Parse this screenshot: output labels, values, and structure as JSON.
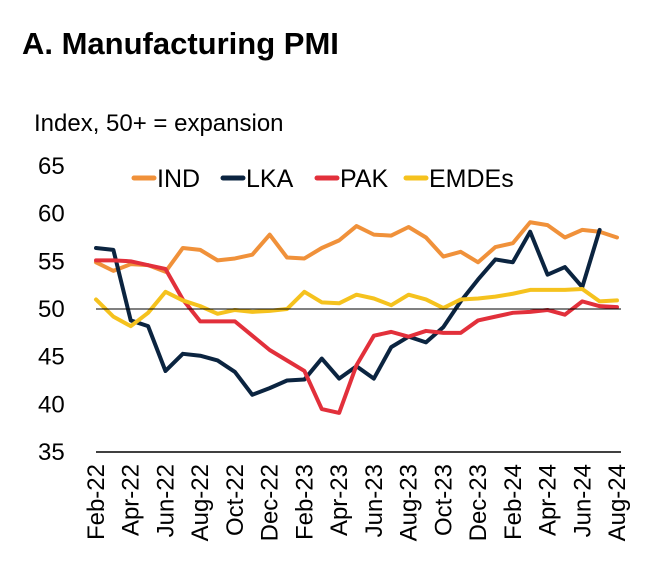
{
  "chart_data": {
    "type": "line",
    "title": "A. Manufacturing PMI",
    "ylabel": "Index, 50+ = expansion",
    "xlabel": "",
    "ylim": [
      35,
      65
    ],
    "yticks": [
      35,
      40,
      45,
      50,
      55,
      60,
      65
    ],
    "reference_line": 50,
    "grid": false,
    "legend_position": "top",
    "x": [
      "Feb-22",
      "Mar-22",
      "Apr-22",
      "May-22",
      "Jun-22",
      "Jul-22",
      "Aug-22",
      "Sep-22",
      "Oct-22",
      "Nov-22",
      "Dec-22",
      "Jan-23",
      "Feb-23",
      "Mar-23",
      "Apr-23",
      "May-23",
      "Jun-23",
      "Jul-23",
      "Aug-23",
      "Sep-23",
      "Oct-23",
      "Nov-23",
      "Dec-23",
      "Jan-24",
      "Feb-24",
      "Mar-24",
      "Apr-24",
      "May-24",
      "Jun-24",
      "Jul-24",
      "Aug-24"
    ],
    "xtick_labels": [
      "Feb-22",
      "Apr-22",
      "Jun-22",
      "Aug-22",
      "Oct-22",
      "Dec-22",
      "Feb-23",
      "Apr-23",
      "Jun-23",
      "Aug-23",
      "Oct-23",
      "Dec-23",
      "Feb-24",
      "Apr-24",
      "Jun-24",
      "Aug-24"
    ],
    "series": [
      {
        "name": "IND",
        "color": "#F0913A",
        "values": [
          54.9,
          54.0,
          54.7,
          54.6,
          53.9,
          56.4,
          56.2,
          55.1,
          55.3,
          55.7,
          57.8,
          55.4,
          55.3,
          56.4,
          57.2,
          58.7,
          57.8,
          57.7,
          58.6,
          57.5,
          55.5,
          56.0,
          54.9,
          56.5,
          56.9,
          59.1,
          58.8,
          57.5,
          58.3,
          58.1,
          57.5
        ]
      },
      {
        "name": "LKA",
        "color": "#0B2440",
        "values": [
          56.4,
          56.2,
          48.8,
          48.2,
          43.5,
          45.3,
          45.1,
          44.6,
          43.4,
          41.0,
          41.7,
          42.5,
          42.6,
          44.8,
          42.7,
          44.0,
          42.7,
          46.0,
          47.1,
          46.5,
          48.1,
          50.8,
          53.1,
          55.2,
          54.9,
          58.1,
          53.6,
          54.4,
          52.3,
          58.3,
          null
        ]
      },
      {
        "name": "PAK",
        "color": "#E2303B",
        "values": [
          55.1,
          55.1,
          55.0,
          54.6,
          54.2,
          51.0,
          48.7,
          48.7,
          48.7,
          47.2,
          45.7,
          44.6,
          43.5,
          39.5,
          39.1,
          44.1,
          47.2,
          47.6,
          47.1,
          47.7,
          47.5,
          47.5,
          48.8,
          49.2,
          49.6,
          49.7,
          49.9,
          49.4,
          50.8,
          50.3,
          50.2
        ]
      },
      {
        "name": "EMDEs",
        "color": "#F5C21E",
        "values": [
          51.0,
          49.2,
          48.2,
          49.6,
          51.8,
          50.9,
          50.3,
          49.5,
          49.9,
          49.7,
          49.8,
          50.0,
          51.8,
          50.7,
          50.6,
          51.5,
          51.1,
          50.4,
          51.5,
          51.0,
          50.1,
          51.0,
          51.1,
          51.3,
          51.6,
          52.0,
          52.0,
          52.0,
          52.1,
          50.8,
          50.9
        ]
      }
    ]
  }
}
